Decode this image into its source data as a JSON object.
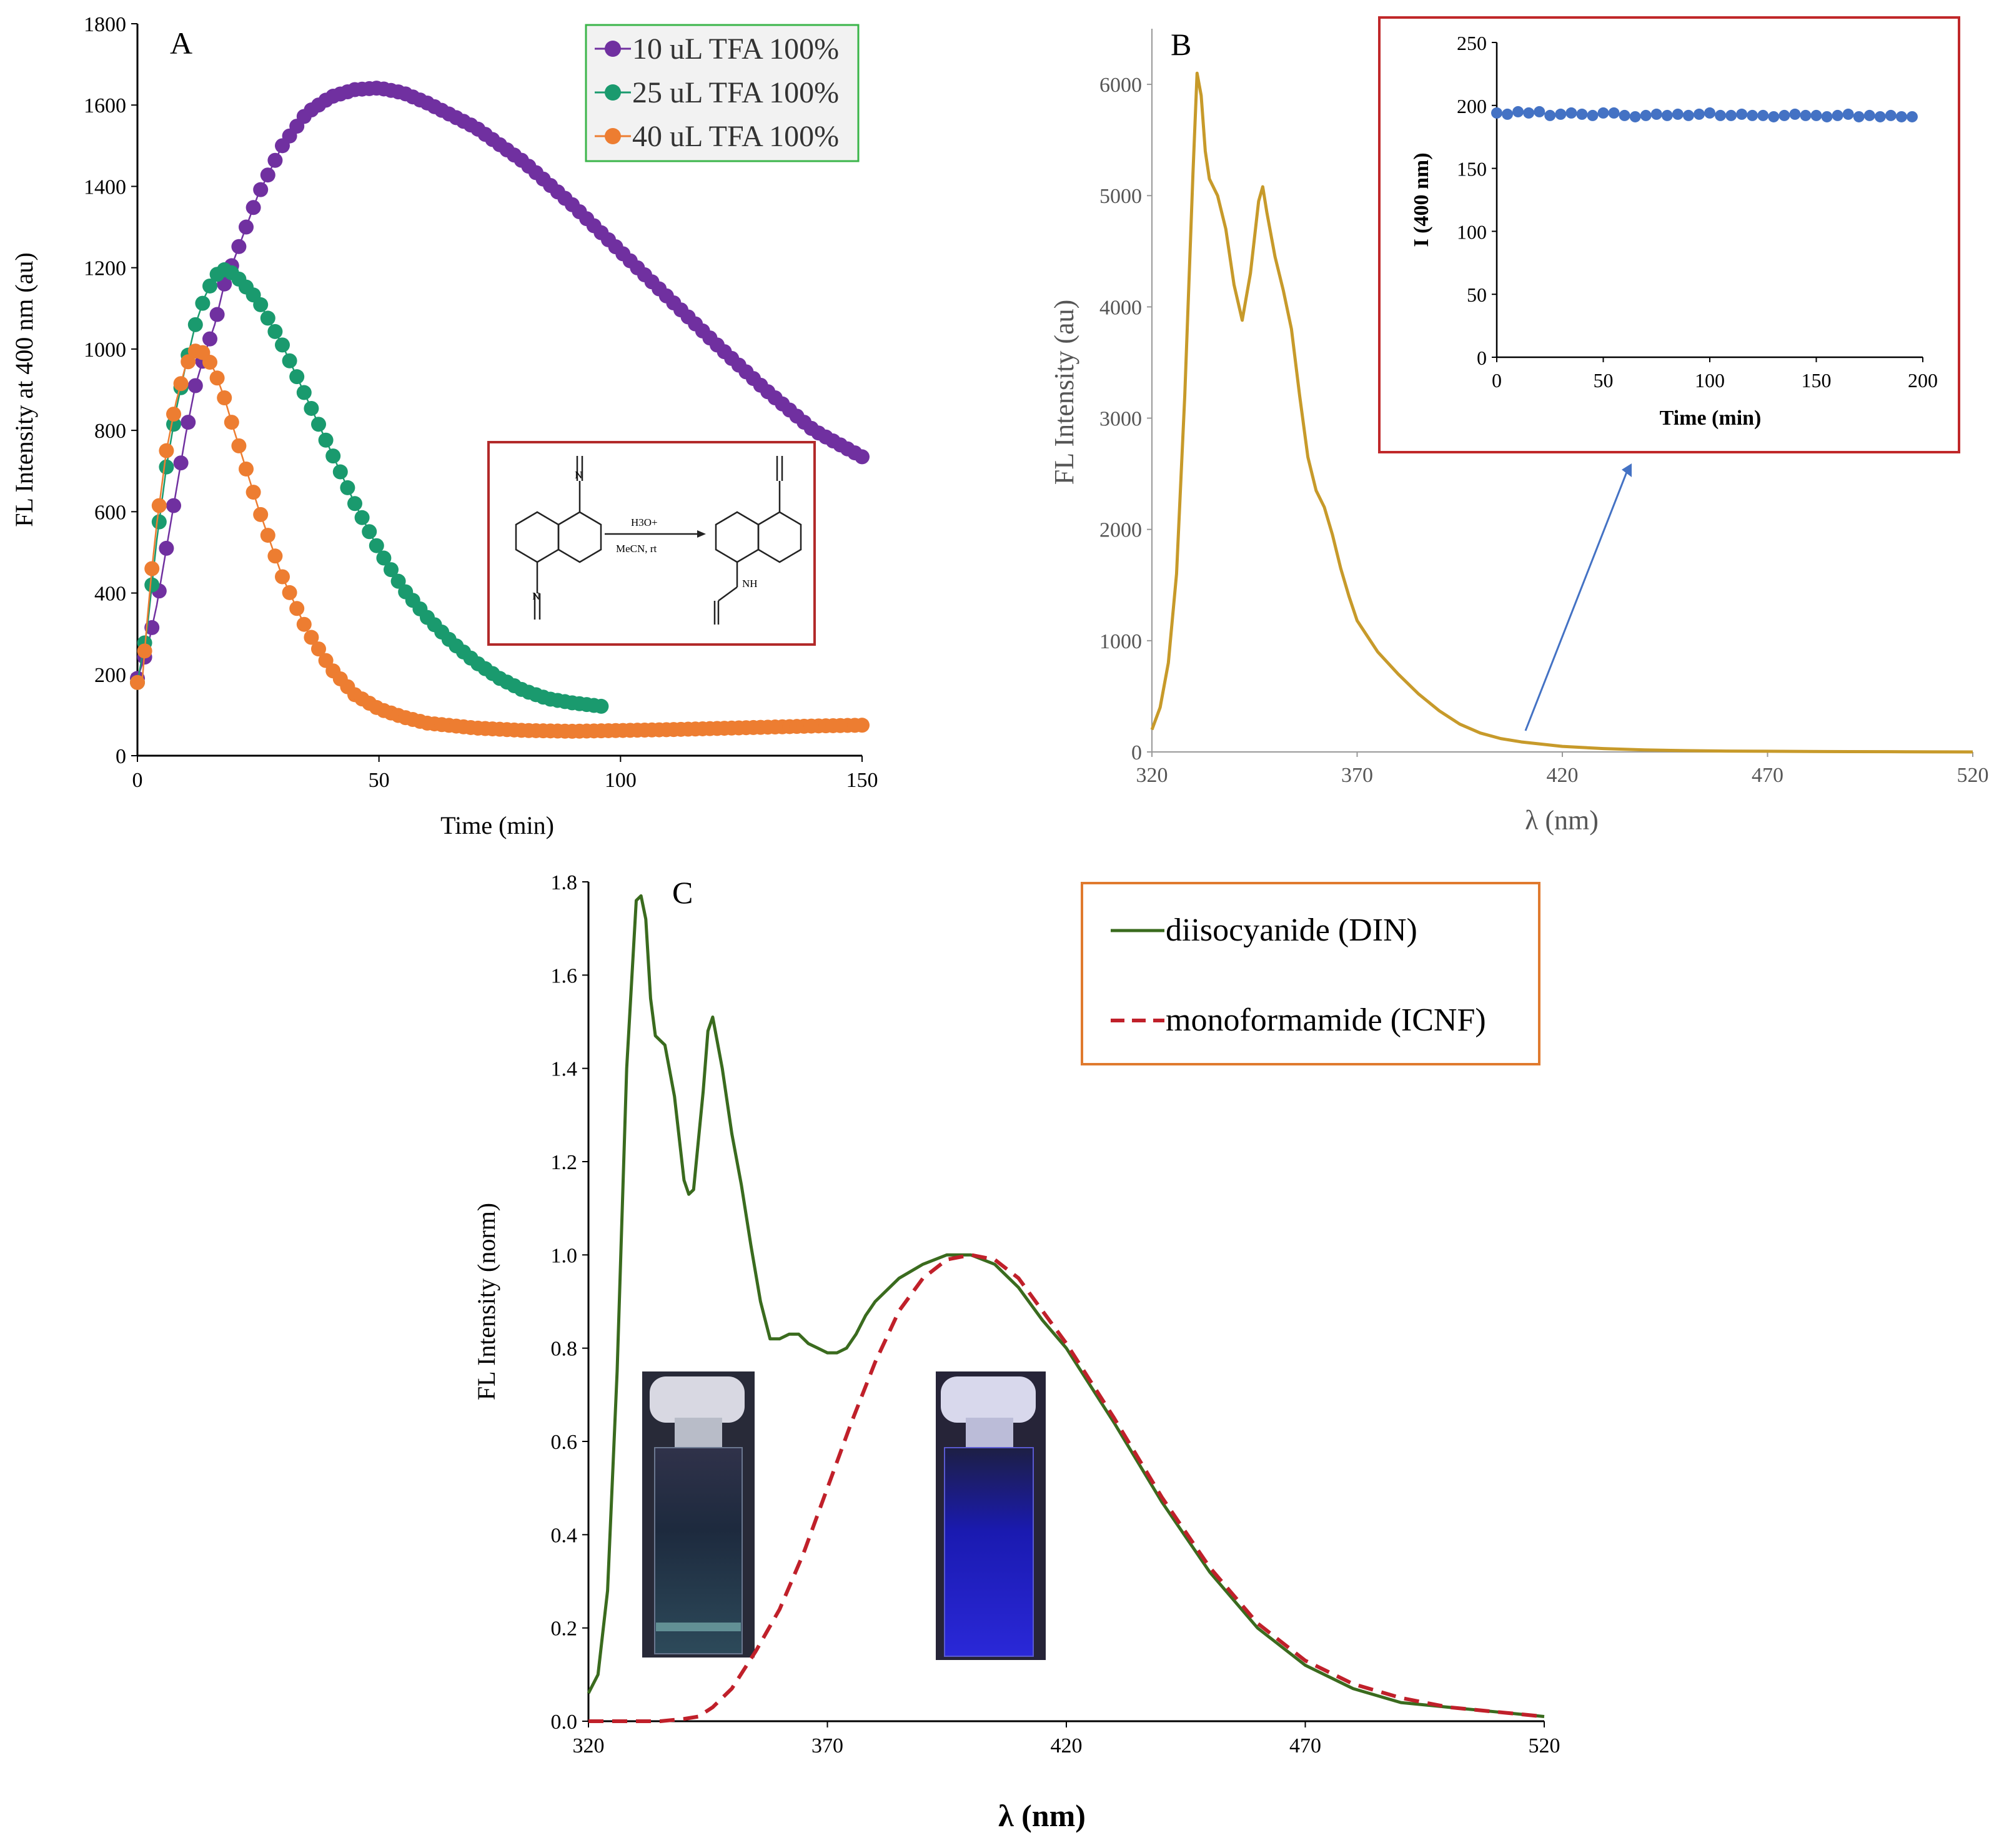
{
  "chart_data": [
    {
      "panel": "A",
      "type": "scatter",
      "title": "",
      "xlabel": "Time (min)",
      "ylabel": "FL Intensity at 400 nm (au)",
      "xlim": [
        0,
        150
      ],
      "ylim": [
        0,
        1800
      ],
      "xticks": [
        "0",
        "50",
        "100",
        "150"
      ],
      "yticks": [
        "0",
        "200",
        "400",
        "600",
        "800",
        "1000",
        "1200",
        "1400",
        "1600",
        "1800"
      ],
      "legend": [
        "10 uL TFA 100%",
        "25 uL TFA 100%",
        "40 uL TFA 100%"
      ],
      "series": [
        {
          "name": "10 uL TFA 100%",
          "color": "#7030a0",
          "x": [
            0,
            2,
            4,
            6,
            8,
            10,
            12,
            14,
            16,
            18,
            20,
            25,
            30,
            35,
            40,
            45,
            50,
            55,
            60,
            70,
            80,
            90,
            100,
            110,
            120,
            130,
            140,
            150
          ],
          "values": [
            190,
            260,
            370,
            510,
            650,
            790,
            910,
            990,
            1060,
            1160,
            1220,
            1380,
            1500,
            1580,
            1620,
            1638,
            1642,
            1630,
            1605,
            1545,
            1460,
            1355,
            1240,
            1125,
            1010,
            900,
            800,
            735
          ]
        },
        {
          "name": "25 uL TFA 100%",
          "color": "#1a9a6e",
          "x": [
            0,
            2,
            4,
            6,
            8,
            10,
            12,
            14,
            16,
            18,
            20,
            25,
            30,
            35,
            40,
            45,
            50,
            55,
            60,
            65,
            70,
            75,
            80,
            85,
            90,
            97
          ],
          "values": [
            180,
            310,
            530,
            710,
            850,
            960,
            1060,
            1130,
            1180,
            1195,
            1185,
            1120,
            1010,
            880,
            750,
            620,
            505,
            410,
            340,
            280,
            230,
            190,
            160,
            140,
            130,
            120
          ]
        },
        {
          "name": "40 uL TFA 100%",
          "color": "#ed7d31",
          "x": [
            0,
            1,
            2,
            3,
            4,
            5,
            6,
            8,
            10,
            12,
            14,
            16,
            18,
            20,
            25,
            30,
            35,
            40,
            45,
            50,
            55,
            60,
            70,
            80,
            90,
            100,
            110,
            120,
            130,
            140,
            150
          ],
          "values": [
            180,
            185,
            330,
            460,
            570,
            660,
            750,
            870,
            960,
            995,
            990,
            945,
            880,
            800,
            610,
            440,
            310,
            215,
            150,
            115,
            95,
            80,
            68,
            62,
            60,
            62,
            64,
            67,
            70,
            73,
            75
          ]
        }
      ],
      "inset_labels": {
        "reagent": "H3O+",
        "conditions": "MeCN, rt"
      }
    },
    {
      "panel": "B",
      "type": "line",
      "xlabel": "λ (nm)",
      "ylabel": "FL Intensity (au)",
      "xlim": [
        320,
        520
      ],
      "ylim": [
        0,
        6500
      ],
      "xticks": [
        "320",
        "370",
        "420",
        "470",
        "520"
      ],
      "yticks": [
        "0",
        "1000",
        "2000",
        "3000",
        "4000",
        "5000",
        "6000"
      ],
      "series": [
        {
          "name": "spectrum",
          "color": "#c79a2a",
          "x": [
            320,
            322,
            324,
            326,
            328,
            330,
            331,
            332,
            333,
            334,
            336,
            338,
            340,
            342,
            344,
            346,
            347,
            348,
            350,
            352,
            354,
            356,
            358,
            360,
            362,
            364,
            366,
            368,
            370,
            375,
            380,
            385,
            390,
            395,
            400,
            405,
            410,
            420,
            430,
            440,
            450,
            460,
            470,
            480,
            490,
            500,
            510,
            520
          ],
          "values": [
            200,
            400,
            800,
            1600,
            3200,
            5200,
            6100,
            5900,
            5400,
            5150,
            5000,
            4700,
            4200,
            3880,
            4300,
            4950,
            5080,
            4850,
            4450,
            4150,
            3800,
            3200,
            2650,
            2350,
            2200,
            1950,
            1650,
            1400,
            1180,
            900,
            700,
            520,
            370,
            250,
            170,
            120,
            90,
            50,
            30,
            18,
            12,
            8,
            6,
            4,
            3,
            2,
            1,
            0
          ]
        }
      ],
      "inset": {
        "type": "scatter",
        "xlabel": "Time (min)",
        "ylabel": "I (400 nm)",
        "xlim": [
          0,
          200
        ],
        "ylim": [
          0,
          250
        ],
        "xticks": [
          "0",
          "50",
          "100",
          "150",
          "200"
        ],
        "yticks": [
          "0",
          "50",
          "100",
          "150",
          "200",
          "250"
        ],
        "x": [
          0,
          5,
          10,
          15,
          20,
          25,
          30,
          35,
          40,
          45,
          50,
          55,
          60,
          65,
          70,
          75,
          80,
          85,
          90,
          95,
          100,
          105,
          110,
          115,
          120,
          125,
          130,
          135,
          140,
          145,
          150,
          155,
          160,
          165,
          170,
          175,
          180,
          185,
          190,
          195
        ],
        "values": [
          194,
          193,
          195,
          194,
          195,
          192,
          193,
          194,
          193,
          192,
          194,
          194,
          192,
          191,
          192,
          193,
          192,
          193,
          192,
          193,
          194,
          192,
          192,
          193,
          192,
          192,
          191,
          192,
          193,
          192,
          192,
          191,
          192,
          193,
          191,
          192,
          191,
          192,
          191,
          191
        ]
      }
    },
    {
      "panel": "C",
      "type": "line",
      "xlabel": "λ (nm)",
      "ylabel": "FL Intensity (norm)",
      "xlim": [
        320,
        520
      ],
      "ylim": [
        0,
        1.8
      ],
      "xticks": [
        "320",
        "370",
        "420",
        "470",
        "520"
      ],
      "yticks": [
        "0.0",
        "0.2",
        "0.4",
        "0.6",
        "0.8",
        "1.0",
        "1.2",
        "1.4",
        "1.6",
        "1.8"
      ],
      "legend": [
        "diisocyanide (DIN)",
        "monoformamide (ICNF)"
      ],
      "series": [
        {
          "name": "diisocyanide (DIN)",
          "color": "#3a6b1e",
          "dash": "solid",
          "x": [
            320,
            322,
            324,
            326,
            328,
            330,
            331,
            332,
            333,
            334,
            336,
            338,
            340,
            341,
            342,
            344,
            345,
            346,
            348,
            350,
            352,
            354,
            356,
            358,
            360,
            362,
            364,
            366,
            368,
            370,
            372,
            374,
            376,
            378,
            380,
            385,
            390,
            395,
            400,
            405,
            410,
            415,
            420,
            425,
            430,
            440,
            450,
            460,
            470,
            480,
            490,
            500,
            510,
            520
          ],
          "values": [
            0.06,
            0.1,
            0.28,
            0.75,
            1.4,
            1.76,
            1.77,
            1.72,
            1.55,
            1.47,
            1.45,
            1.34,
            1.16,
            1.13,
            1.14,
            1.35,
            1.48,
            1.51,
            1.4,
            1.26,
            1.15,
            1.02,
            0.9,
            0.82,
            0.82,
            0.83,
            0.83,
            0.81,
            0.8,
            0.79,
            0.79,
            0.8,
            0.83,
            0.87,
            0.9,
            0.95,
            0.98,
            1.0,
            1.0,
            0.98,
            0.93,
            0.86,
            0.8,
            0.72,
            0.64,
            0.47,
            0.32,
            0.2,
            0.12,
            0.07,
            0.04,
            0.03,
            0.02,
            0.01
          ]
        },
        {
          "name": "monoformamide (ICNF)",
          "color": "#c0202a",
          "dash": "dashed",
          "x": [
            320,
            330,
            335,
            340,
            343,
            346,
            350,
            355,
            360,
            365,
            370,
            375,
            380,
            385,
            390,
            395,
            400,
            405,
            410,
            415,
            420,
            425,
            430,
            440,
            450,
            460,
            470,
            480,
            490,
            500,
            510,
            520
          ],
          "values": [
            0.0,
            0.0,
            0.0,
            0.005,
            0.01,
            0.03,
            0.07,
            0.15,
            0.24,
            0.36,
            0.5,
            0.64,
            0.77,
            0.88,
            0.95,
            0.99,
            1.0,
            0.99,
            0.95,
            0.88,
            0.81,
            0.73,
            0.65,
            0.48,
            0.33,
            0.21,
            0.13,
            0.08,
            0.05,
            0.03,
            0.02,
            0.01
          ]
        }
      ]
    }
  ]
}
